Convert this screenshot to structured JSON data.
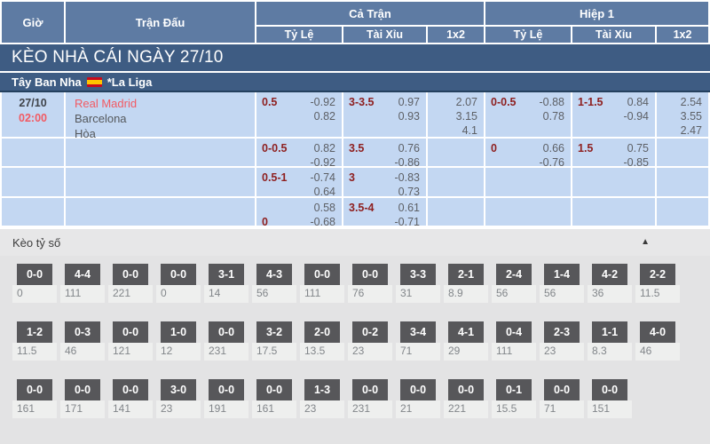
{
  "colors": {
    "steel_blue": "#5e7ba3",
    "dark_blue": "#3e5c83",
    "cell_blue": "#c3d7f2",
    "label_red": "#8e1f1f",
    "team_red": "#f25a63",
    "box_gray": "#57575a"
  },
  "headers": {
    "time": "Giờ",
    "match": "Trận Đấu",
    "full_match": "Cả Trận",
    "first_half": "Hiệp 1",
    "handicap": "Tỷ Lệ",
    "over_under": "Tài Xỉu",
    "x12": "1x2"
  },
  "banner": {
    "title": "KÈO NHÀ CÁI NGÀY 27/10"
  },
  "league": {
    "country": "Tây Ban Nha",
    "flag": "spain-flag",
    "name": "*La Liga"
  },
  "match": {
    "date": "27/10",
    "time": "02:00",
    "home": "Real Madrid",
    "away": "Barcelona",
    "draw": "Hòa"
  },
  "odds_rows": [
    {
      "ft_hdp": {
        "l1": [
          "0.5",
          "-0.92"
        ],
        "l2": [
          "",
          "0.82"
        ]
      },
      "ft_ou": {
        "l1": [
          "3-3.5",
          "0.97"
        ],
        "l2": [
          "",
          "0.93"
        ]
      },
      "ft_1x2": [
        "2.07",
        "3.15",
        "4.1"
      ],
      "h1_hdp": {
        "l1": [
          "0-0.5",
          "-0.88"
        ],
        "l2": [
          "",
          "0.78"
        ]
      },
      "h1_ou": {
        "l1": [
          "1-1.5",
          "0.84"
        ],
        "l2": [
          "",
          "-0.94"
        ]
      },
      "h1_1x2": [
        "2.54",
        "3.55",
        "2.47"
      ]
    },
    {
      "ft_hdp": {
        "l1": [
          "0-0.5",
          "0.82"
        ],
        "l2": [
          "",
          "-0.92"
        ]
      },
      "ft_ou": {
        "l1": [
          "3.5",
          "0.76"
        ],
        "l2": [
          "",
          "-0.86"
        ]
      },
      "ft_1x2": [],
      "h1_hdp": {
        "l1": [
          "0",
          "0.66"
        ],
        "l2": [
          "",
          "-0.76"
        ]
      },
      "h1_ou": {
        "l1": [
          "1.5",
          "0.75"
        ],
        "l2": [
          "",
          "-0.85"
        ]
      },
      "h1_1x2": []
    },
    {
      "ft_hdp": {
        "l1": [
          "0.5-1",
          "-0.74"
        ],
        "l2": [
          "",
          "0.64"
        ]
      },
      "ft_ou": {
        "l1": [
          "3",
          "-0.83"
        ],
        "l2": [
          "",
          "0.73"
        ]
      },
      "ft_1x2": [],
      "h1_hdp": null,
      "h1_ou": null,
      "h1_1x2": []
    },
    {
      "ft_hdp": {
        "l1": [
          "",
          "0.58"
        ],
        "l2": [
          "0",
          "-0.68"
        ]
      },
      "ft_ou": {
        "l1": [
          "3.5-4",
          "0.61"
        ],
        "l2": [
          "",
          "-0.71"
        ]
      },
      "ft_1x2": [],
      "h1_hdp": null,
      "h1_ou": null,
      "h1_1x2": []
    }
  ],
  "score_section": {
    "title": "Kèo tỷ số",
    "collapse_icon": "▲",
    "rows": [
      [
        {
          "score": "0-0",
          "odds": "0"
        },
        {
          "score": "4-4",
          "odds": "111"
        },
        {
          "score": "0-0",
          "odds": "221"
        },
        {
          "score": "0-0",
          "odds": "0"
        },
        {
          "score": "3-1",
          "odds": "14"
        },
        {
          "score": "4-3",
          "odds": "56"
        },
        {
          "score": "0-0",
          "odds": "111"
        },
        {
          "score": "0-0",
          "odds": "76"
        },
        {
          "score": "3-3",
          "odds": "31"
        },
        {
          "score": "2-1",
          "odds": "8.9"
        },
        {
          "score": "2-4",
          "odds": "56"
        },
        {
          "score": "1-4",
          "odds": "56"
        },
        {
          "score": "4-2",
          "odds": "36"
        },
        {
          "score": "2-2",
          "odds": "11.5"
        }
      ],
      [
        {
          "score": "1-2",
          "odds": "11.5"
        },
        {
          "score": "0-3",
          "odds": "46"
        },
        {
          "score": "0-0",
          "odds": "121"
        },
        {
          "score": "1-0",
          "odds": "12"
        },
        {
          "score": "0-0",
          "odds": "231"
        },
        {
          "score": "3-2",
          "odds": "17.5"
        },
        {
          "score": "2-0",
          "odds": "13.5"
        },
        {
          "score": "0-2",
          "odds": "23"
        },
        {
          "score": "3-4",
          "odds": "71"
        },
        {
          "score": "4-1",
          "odds": "29"
        },
        {
          "score": "0-4",
          "odds": "111"
        },
        {
          "score": "2-3",
          "odds": "23"
        },
        {
          "score": "1-1",
          "odds": "8.3"
        },
        {
          "score": "4-0",
          "odds": "46"
        }
      ],
      [
        {
          "score": "0-0",
          "odds": "161"
        },
        {
          "score": "0-0",
          "odds": "171"
        },
        {
          "score": "0-0",
          "odds": "141"
        },
        {
          "score": "3-0",
          "odds": "23"
        },
        {
          "score": "0-0",
          "odds": "191"
        },
        {
          "score": "0-0",
          "odds": "161"
        },
        {
          "score": "1-3",
          "odds": "23"
        },
        {
          "score": "0-0",
          "odds": "231"
        },
        {
          "score": "0-0",
          "odds": "21"
        },
        {
          "score": "0-0",
          "odds": "221"
        },
        {
          "score": "0-1",
          "odds": "15.5"
        },
        {
          "score": "0-0",
          "odds": "71"
        },
        {
          "score": "0-0",
          "odds": "151"
        }
      ]
    ]
  }
}
